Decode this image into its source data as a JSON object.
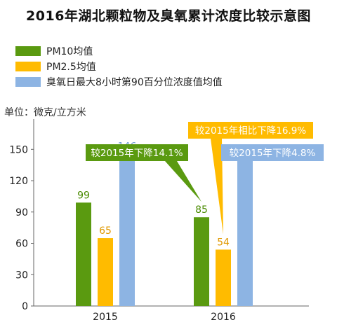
{
  "title": "2016年湖北颗粒物及臭氧累计浓度比较示意图",
  "unit_label": "单位：微克/立方米",
  "colors": {
    "pm10": "#5a9a10",
    "pm25": "#ffbb00",
    "o3": "#8db4e3",
    "axis": "#666666",
    "grid": "#dddddd"
  },
  "chart_data": {
    "type": "bar",
    "categories": [
      "2015",
      "2016"
    ],
    "series": [
      {
        "name": "PM10均值",
        "values": [
          99,
          85
        ],
        "color": "#5a9a10"
      },
      {
        "name": "PM2.5均值",
        "values": [
          65,
          54
        ],
        "color": "#ffbb00"
      },
      {
        "name": "臭氧日最大8小时第90百分位浓度值均值",
        "values": [
          146,
          139
        ],
        "color": "#8db4e3"
      }
    ],
    "yticks": [
      0,
      30,
      60,
      90,
      120,
      150
    ],
    "ylim": [
      0,
      175
    ],
    "grid": false,
    "legend_position": "top-left",
    "annotations": [
      {
        "text": "较2015年下降14.1%",
        "series": 0,
        "category": 1,
        "color": "#5a9a10"
      },
      {
        "text": "较2015年相比下降16.9%",
        "series": 1,
        "category": 1,
        "color": "#ffbb00"
      },
      {
        "text": "较2015年下降4.8%",
        "series": 2,
        "category": 1,
        "color": "#8db4e3"
      }
    ]
  }
}
